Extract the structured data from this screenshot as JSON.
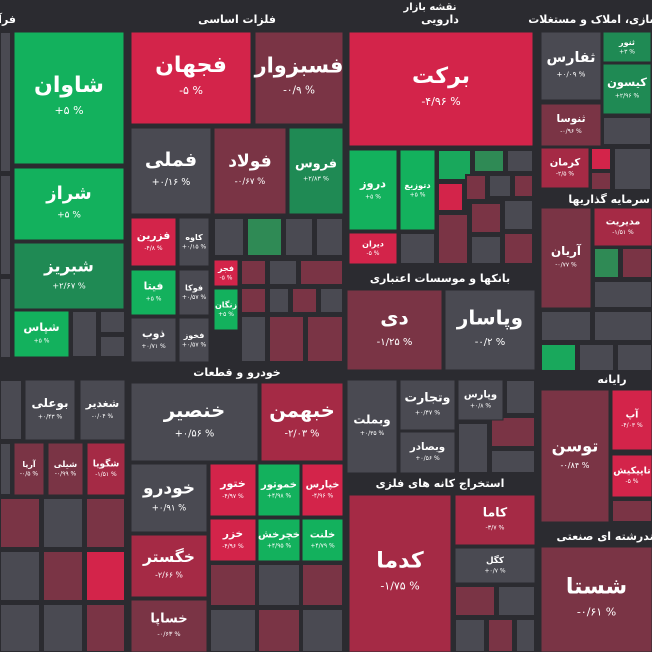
{
  "chart_data": {
    "type": "treemap",
    "title": "نقشه بازار",
    "groups": [
      {
        "name": "فرآورده های نفتی",
        "tiles": [
          {
            "name": "شاوان",
            "value": 5,
            "value_label": "+۵ %"
          },
          {
            "name": "شراز",
            "value": 5,
            "value_label": "+۵ %"
          },
          {
            "name": "شبریز",
            "value": 2.67,
            "value_label": "+۲/۶۷ %"
          },
          {
            "name": "شپاس",
            "value": 5,
            "value_label": "+۵ %"
          }
        ]
      },
      {
        "name": "فلزات اساسی",
        "tiles": [
          {
            "name": "فجهان",
            "value": -5,
            "value_label": "-۵ %"
          },
          {
            "name": "فسبزوار",
            "value": -0.9,
            "value_label": "-۰/۹ %"
          },
          {
            "name": "فملی",
            "value": 0.16,
            "value_label": "+۰/۱۶ %"
          },
          {
            "name": "فولاد",
            "value": -0.67,
            "value_label": "-۰/۶۷ %"
          },
          {
            "name": "فروس",
            "value": 2.83,
            "value_label": "+۲/۸۳ %"
          },
          {
            "name": "فزرین",
            "value": -4.8,
            "value_label": "-۴/۸ %"
          },
          {
            "name": "کاوه",
            "value": 0.15,
            "value_label": "+۰/۱۵ %"
          },
          {
            "name": "فیتا",
            "value": 5,
            "value_label": "+۵ %"
          },
          {
            "name": "فوکا",
            "value": 0.57,
            "value_label": "+۰/۵۷ %"
          },
          {
            "name": "فجر",
            "value": -5,
            "value_label": "-۵ %"
          },
          {
            "name": "زنگان",
            "value": 5,
            "value_label": "+۵ %"
          },
          {
            "name": "ذوب",
            "value": 0.71,
            "value_label": "+۰/۷۱ %"
          },
          {
            "name": "فخوز",
            "value": 0.57,
            "value_label": "+۰/۵۷ %"
          }
        ]
      },
      {
        "name": "دارویی",
        "tiles": [
          {
            "name": "برکت",
            "value": -4.96,
            "value_label": "-۴/۹۶ %"
          },
          {
            "name": "دروز",
            "value": 5,
            "value_label": "+۵ %"
          },
          {
            "name": "دتوزیع",
            "value": 5,
            "value_label": "+۵ %"
          },
          {
            "name": "دیران",
            "value": -5,
            "value_label": "-۵ %"
          }
        ]
      },
      {
        "name": "انبوه سازی، املاک و مستغلات",
        "tiles": [
          {
            "name": "ثفارس",
            "value": 0.09,
            "value_label": "+۰/۰۹ %"
          },
          {
            "name": "ثنور",
            "value": 3,
            "value_label": "+۳ %"
          },
          {
            "name": "کیسون",
            "value": 2.96,
            "value_label": "+۲/۹۶ %"
          },
          {
            "name": "ثنوسا",
            "value": -0.96,
            "value_label": "-۰/۹۶ %"
          },
          {
            "name": "کرمان",
            "value": -2.5,
            "value_label": "-۲/۵ %"
          }
        ]
      },
      {
        "name": "سرمایه گذاریها",
        "tiles": [
          {
            "name": "مدیریت",
            "value": -1.51,
            "value_label": "-۱/۵۱ %"
          },
          {
            "name": "آریان",
            "value": -0.77,
            "value_label": "-۰/۷۷ %"
          }
        ]
      },
      {
        "name": "بانکها و موسسات اعتباری",
        "tiles": [
          {
            "name": "دی",
            "value": -1.25,
            "value_label": "-۱/۲۵ %"
          },
          {
            "name": "وپاسار",
            "value": -0.2,
            "value_label": "-۰/۲ %"
          },
          {
            "name": "وبملت",
            "value": 0.35,
            "value_label": "+۰/۳۵ %"
          },
          {
            "name": "وتجارت",
            "value": 0.47,
            "value_label": "+۰/۴۷ %"
          },
          {
            "name": "وپارس",
            "value": 0.8,
            "value_label": "+۰/۸ %"
          },
          {
            "name": "وبصادر",
            "value": 0.56,
            "value_label": "+۰/۵۶ %"
          }
        ]
      },
      {
        "name": "رایانه",
        "tiles": [
          {
            "name": "آپ",
            "value": -4.03,
            "value_label": "-۴/۰۳ %"
          },
          {
            "name": "تاپیکیش",
            "value": -5,
            "value_label": "-۵ %"
          },
          {
            "name": "توسن",
            "value": -0.84,
            "value_label": "-۰/۸۴ %"
          }
        ]
      },
      {
        "name": "خودرو و قطعات",
        "tiles": [
          {
            "name": "خنصیر",
            "value": 0.56,
            "value_label": "+۰/۵۶ %"
          },
          {
            "name": "خبهمن",
            "value": -2.03,
            "value_label": "-۲/۰۳ %"
          },
          {
            "name": "خودرو",
            "value": 0.91,
            "value_label": "+۰/۹۱ %"
          },
          {
            "name": "ختور",
            "value": -4.97,
            "value_label": "-۴/۹۷ %"
          },
          {
            "name": "خموتور",
            "value": 4.98,
            "value_label": "+۴/۹۸ %"
          },
          {
            "name": "خپارس",
            "value": -4.96,
            "value_label": "-۴/۹۶ %"
          },
          {
            "name": "خگستر",
            "value": -2.66,
            "value_label": "-۲/۶۶ %"
          },
          {
            "name": "خزر",
            "value": -4.96,
            "value_label": "-۴/۹۶ %"
          },
          {
            "name": "خچرخش",
            "value": 4.95,
            "value_label": "+۴/۹۵ %"
          },
          {
            "name": "خلنت",
            "value": 4.79,
            "value_label": "+۴/۷۹ %"
          },
          {
            "name": "خساپا",
            "value": -0.63,
            "value_label": "-۰/۶۳ %"
          }
        ]
      },
      {
        "name": "استخراج کانه های فلزی",
        "tiles": [
          {
            "name": "کدما",
            "value": -1.75,
            "value_label": "-۱/۷۵ %"
          },
          {
            "name": "کاما",
            "value": -3.7,
            "value_label": "-۳/۷ %"
          },
          {
            "name": "کگل",
            "value": 0.7,
            "value_label": "+۰/۷ %"
          }
        ]
      },
      {
        "name": "چندرشته ای صنعتی",
        "tiles": [
          {
            "name": "شستا",
            "value": -0.61,
            "value_label": "-۰/۶۱ %"
          }
        ]
      },
      {
        "tiles": [
          {
            "name": "بوعلی",
            "value": 0.43,
            "value_label": "+۰/۴۳ %"
          },
          {
            "name": "شغدیر",
            "value": -0.04,
            "value_label": "-۰/۰۴ %"
          },
          {
            "name": "آریا",
            "value": -0.5,
            "value_label": "-۰/۵ %"
          },
          {
            "name": "شیلی",
            "value": -0.99,
            "value_label": "-۰/۹۹ %"
          },
          {
            "name": "شگویا",
            "value": -1.51,
            "value_label": "-۱/۵۱ %"
          }
        ]
      }
    ]
  }
}
